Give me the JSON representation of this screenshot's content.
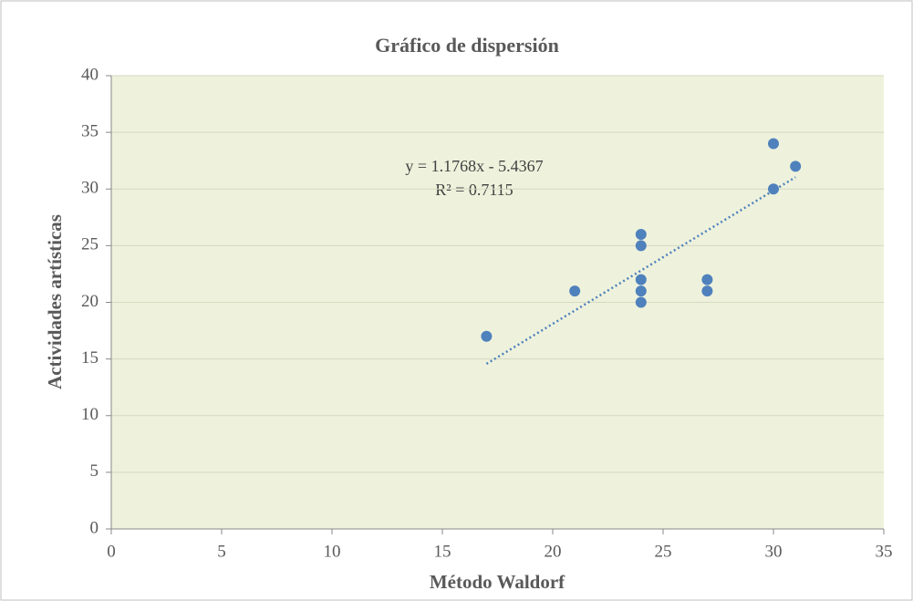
{
  "chart_data": {
    "type": "scatter",
    "title": "Gráfico de dispersión",
    "x_label": "Método Waldorf",
    "y_label": "Actividades artísticas",
    "x": [
      17,
      21,
      24,
      24,
      24,
      24,
      24,
      27,
      27,
      30,
      30,
      31
    ],
    "values": [
      17,
      21,
      26,
      25,
      22,
      21,
      20,
      22,
      21,
      34,
      30,
      32
    ],
    "color": "#4f81bd",
    "xlim": [
      0,
      35
    ],
    "xticks": [
      0,
      5,
      10,
      15,
      20,
      25,
      30,
      35
    ],
    "ylim": [
      0,
      40
    ],
    "yticks": [
      0,
      5,
      10,
      15,
      20,
      25,
      30,
      35,
      40
    ],
    "grid": true,
    "trendline": {
      "slope": 1.1768,
      "intercept": -5.4367,
      "label": "y = 1.1768x  - 5.4367",
      "r2": 0.7115,
      "r2_label": "R² = 0.7115"
    }
  }
}
